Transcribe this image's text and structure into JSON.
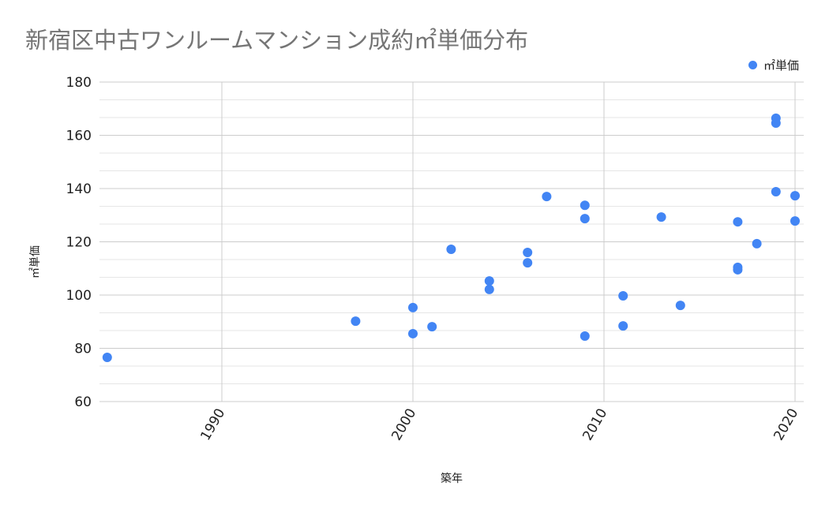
{
  "chart": {
    "title": "新宿区中古ワンルームマンション成約㎡単価分布",
    "legend_label": "㎡単価",
    "xlabel": "築年",
    "ylabel": "㎡単価",
    "point_color": "#4285f4"
  },
  "chart_data": {
    "type": "scatter",
    "title": "新宿区中古ワンルームマンション成約㎡単価分布",
    "xlabel": "築年",
    "ylabel": "㎡単価",
    "legend": [
      "㎡単価"
    ],
    "legend_position": "top-right",
    "grid": true,
    "xlim": [
      1983.6,
      2020.5
    ],
    "ylim": [
      60,
      180
    ],
    "x_ticks": [
      1990,
      2000,
      2010,
      2020
    ],
    "y_ticks": [
      60,
      80,
      100,
      120,
      140,
      160,
      180
    ],
    "series": [
      {
        "name": "㎡単価",
        "points": [
          {
            "x": 1984,
            "y": 76.6
          },
          {
            "x": 1997,
            "y": 90.2
          },
          {
            "x": 2000,
            "y": 95.3
          },
          {
            "x": 2000,
            "y": 85.5
          },
          {
            "x": 2001,
            "y": 88.1
          },
          {
            "x": 2002,
            "y": 117.2
          },
          {
            "x": 2004,
            "y": 105.3
          },
          {
            "x": 2004,
            "y": 102.1
          },
          {
            "x": 2006,
            "y": 116.0
          },
          {
            "x": 2006,
            "y": 112.1
          },
          {
            "x": 2007,
            "y": 137.0
          },
          {
            "x": 2009,
            "y": 133.7
          },
          {
            "x": 2009,
            "y": 128.7
          },
          {
            "x": 2009,
            "y": 84.6
          },
          {
            "x": 2011,
            "y": 99.7
          },
          {
            "x": 2011,
            "y": 88.4
          },
          {
            "x": 2013,
            "y": 129.3
          },
          {
            "x": 2014,
            "y": 96.1
          },
          {
            "x": 2017,
            "y": 127.5
          },
          {
            "x": 2017,
            "y": 110.4
          },
          {
            "x": 2017,
            "y": 109.5
          },
          {
            "x": 2018,
            "y": 119.3
          },
          {
            "x": 2019,
            "y": 166.4
          },
          {
            "x": 2019,
            "y": 164.6
          },
          {
            "x": 2019,
            "y": 138.8
          },
          {
            "x": 2020,
            "y": 137.3
          },
          {
            "x": 2020,
            "y": 127.8
          }
        ]
      }
    ]
  }
}
